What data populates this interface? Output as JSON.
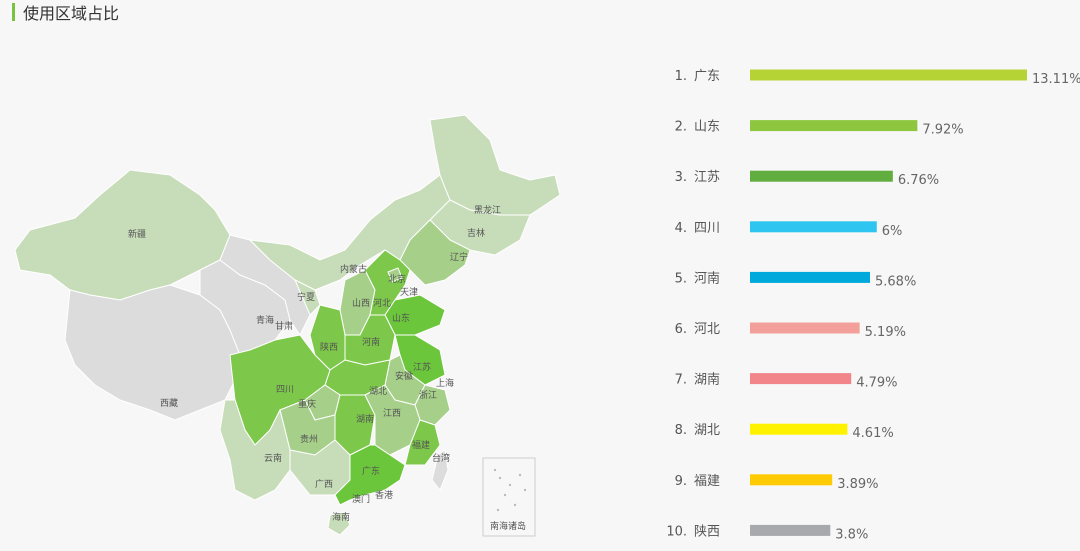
{
  "header": {
    "title": "使用区域占比",
    "accent_color": "#7cc242"
  },
  "chart_data": [
    {
      "type": "bar",
      "orientation": "horizontal",
      "title": "",
      "categories": [
        "广东",
        "山东",
        "江苏",
        "四川",
        "河南",
        "河北",
        "湖南",
        "湖北",
        "福建",
        "陕西"
      ],
      "ranks": [
        "1.",
        "2.",
        "3.",
        "4.",
        "5.",
        "6.",
        "7.",
        "8.",
        "9.",
        "10."
      ],
      "values": [
        13.11,
        7.92,
        6.76,
        6,
        5.68,
        5.19,
        4.79,
        4.61,
        3.89,
        3.8
      ],
      "value_labels": [
        "13.11%",
        "7.92%",
        "6.76%",
        "6%",
        "5.68%",
        "5.19%",
        "4.79%",
        "4.61%",
        "3.89%",
        "3.8%"
      ],
      "colors": [
        "#b5d334",
        "#8dc63f",
        "#62ad3f",
        "#2ec6f0",
        "#00a9db",
        "#f3a09a",
        "#f2858a",
        "#fff200",
        "#ffcb05",
        "#a7a9ac"
      ],
      "xlim": [
        0,
        13.11
      ],
      "grid": false
    },
    {
      "type": "map",
      "region_labels": [
        "新疆",
        "西藏",
        "青海",
        "甘肃",
        "宁夏",
        "内蒙古",
        "黑龙江",
        "吉林",
        "辽宁",
        "北京",
        "天津",
        "河北",
        "山西",
        "山东",
        "陕西",
        "河南",
        "江苏",
        "上海",
        "安徽",
        "湖北",
        "四川",
        "重庆",
        "浙江",
        "湖南",
        "江西",
        "贵州",
        "福建",
        "台湾",
        "云南",
        "广西",
        "广东",
        "香港",
        "澳门",
        "海南",
        "南海诸岛"
      ],
      "palette": {
        "highest": "#6cc63c",
        "high": "#7dc84a",
        "medium": "#a6cf8a",
        "low": "#c7ddb9",
        "lowest": "#dcdcdc",
        "border": "#ffffff"
      }
    }
  ]
}
